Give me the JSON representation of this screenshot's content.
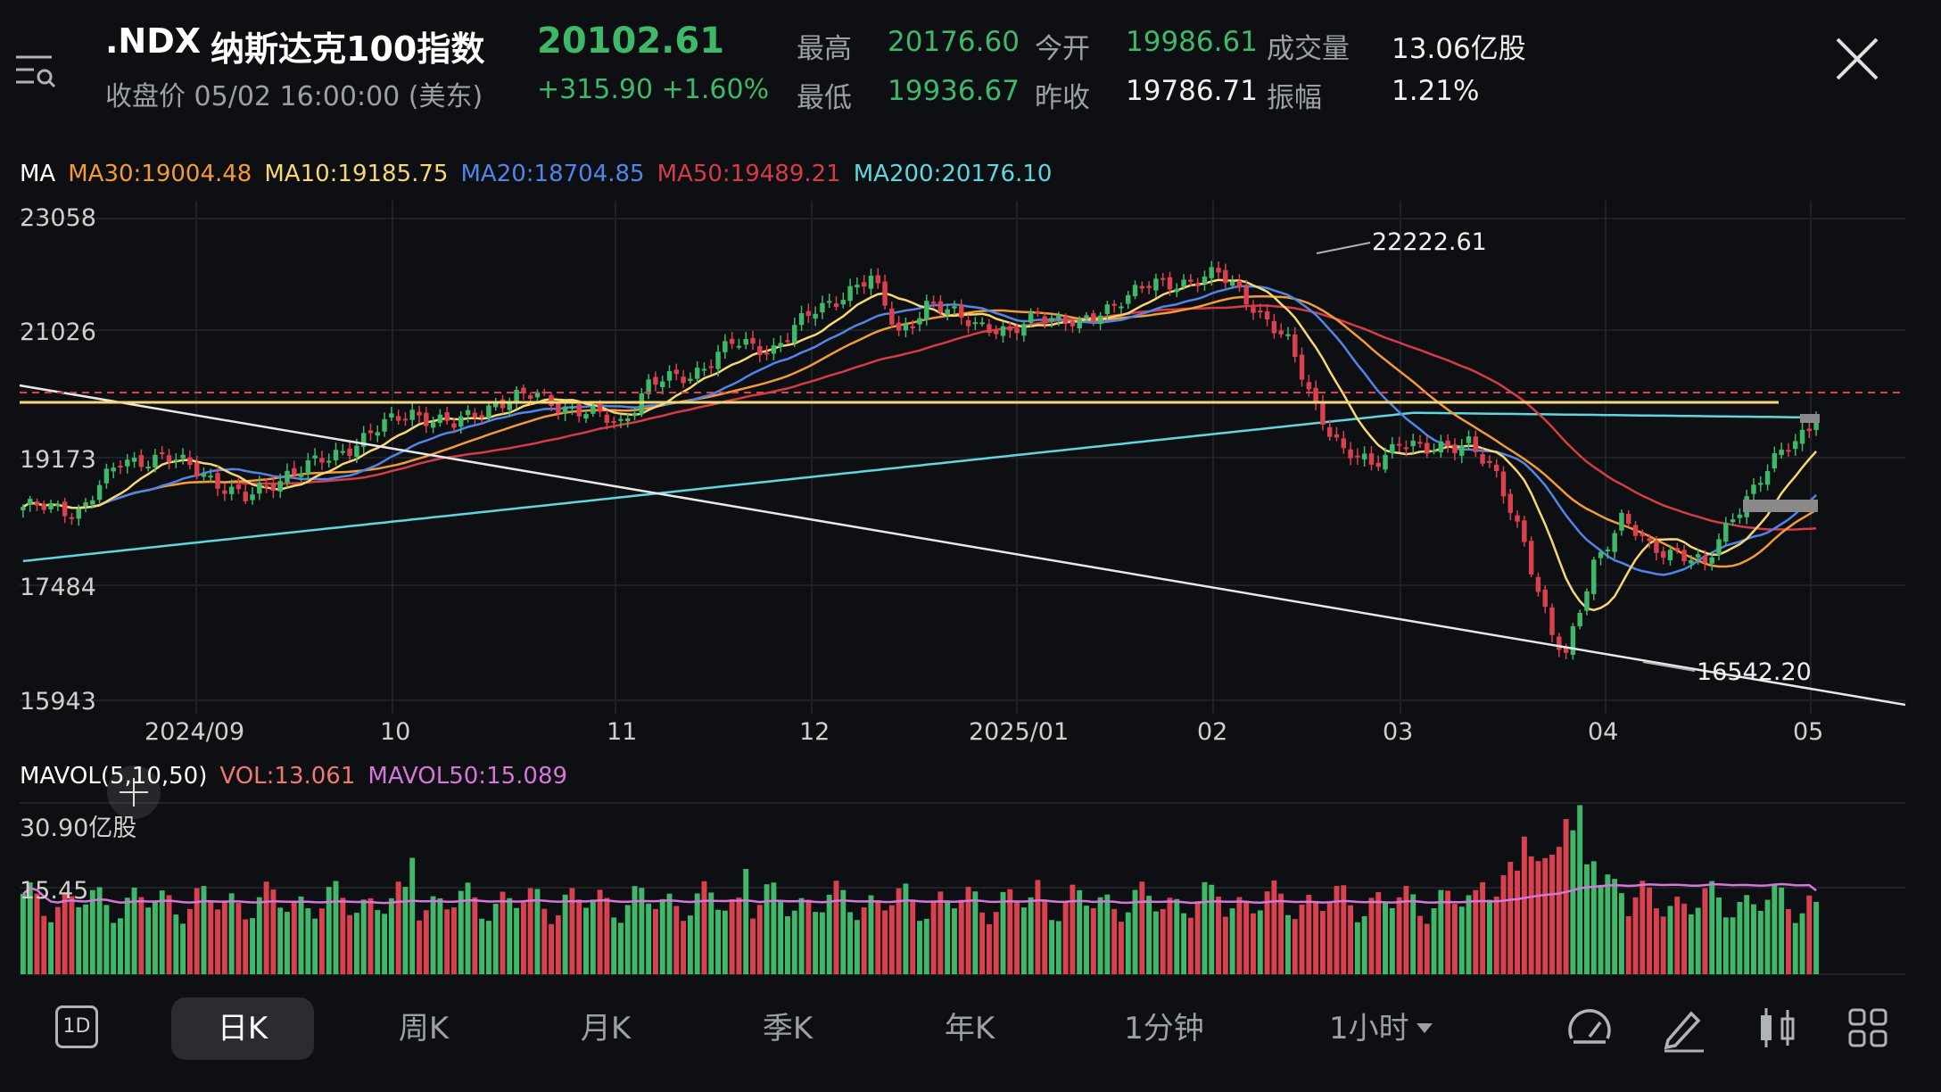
{
  "header": {
    "symbol": ".NDX",
    "name": "纳斯达克100指数",
    "price": "20102.61",
    "close_time": "收盘价 05/02 16:00:00 (美东)",
    "change": "+315.90 +1.60%",
    "quote_grid": [
      {
        "label": "最高",
        "value": "20176.60"
      },
      {
        "label": "今开",
        "value": "19986.61"
      },
      {
        "label": "成交量",
        "value": "13.06亿股"
      },
      {
        "label": "最低",
        "value": "19936.67"
      },
      {
        "label": "昨收",
        "value": "19786.71"
      },
      {
        "label": "振幅",
        "value": "1.21%"
      }
    ]
  },
  "colors": {
    "up": "#3fb86a",
    "down": "#d9414f",
    "ma30": "#f39a3b",
    "ma10": "#f7d774",
    "ma20": "#4f86e8",
    "ma50": "#d63c47",
    "ma200": "#5fd7e0",
    "mavol50": "#d576d9",
    "background": "#0e0f12"
  },
  "ma_legend": {
    "title": "MA",
    "items": [
      {
        "text": "MA30:19004.48",
        "color": "#f39a3b"
      },
      {
        "text": "MA10:19185.75",
        "color": "#f7d774"
      },
      {
        "text": "MA20:18704.85",
        "color": "#4f86e8"
      },
      {
        "text": "MA50:19489.21",
        "color": "#d63c47"
      },
      {
        "text": "MA200:20176.10",
        "color": "#5fd7e0"
      }
    ]
  },
  "price_axis": [
    "23058",
    "21026",
    "19173",
    "17484",
    "15943"
  ],
  "date_axis": [
    "2024/09",
    "10",
    "11",
    "12",
    "2025/01",
    "02",
    "03",
    "04",
    "05"
  ],
  "callouts": {
    "high": "22222.61",
    "low": "16542.20"
  },
  "vol_legend": {
    "title": "MAVOL(5,10,50)",
    "vol": "VOL:13.061",
    "mavol50": "MAVOL50:15.089"
  },
  "vol_axis": [
    "30.90亿股",
    "15.45"
  ],
  "toolbar": {
    "period_icon": "1D",
    "tabs": [
      "日K",
      "周K",
      "月K",
      "季K",
      "年K",
      "1分钟",
      "1小时"
    ],
    "active_tab": 0,
    "tools": [
      "speed-icon",
      "pencil-icon",
      "candle-settings-icon",
      "grid-icon"
    ]
  },
  "chart_data": {
    "type": "candlestick",
    "xlabel": "",
    "ylabel": "",
    "price_range": [
      15943,
      23058
    ],
    "x_ticks": [
      "2024/09",
      "10",
      "11",
      "12",
      "2025/01",
      "02",
      "03",
      "04",
      "05"
    ],
    "last_close": 20102.61,
    "period_high": 22222.61,
    "period_low": 16542.2,
    "ma_values": {
      "MA30": 19004.48,
      "MA10": 19185.75,
      "MA20": 18704.85,
      "MA50": 19489.21,
      "MA200": 20176.1
    },
    "volume_range": [
      0,
      30.9
    ],
    "last_volume": 13.061,
    "mavol50": 15.089
  }
}
